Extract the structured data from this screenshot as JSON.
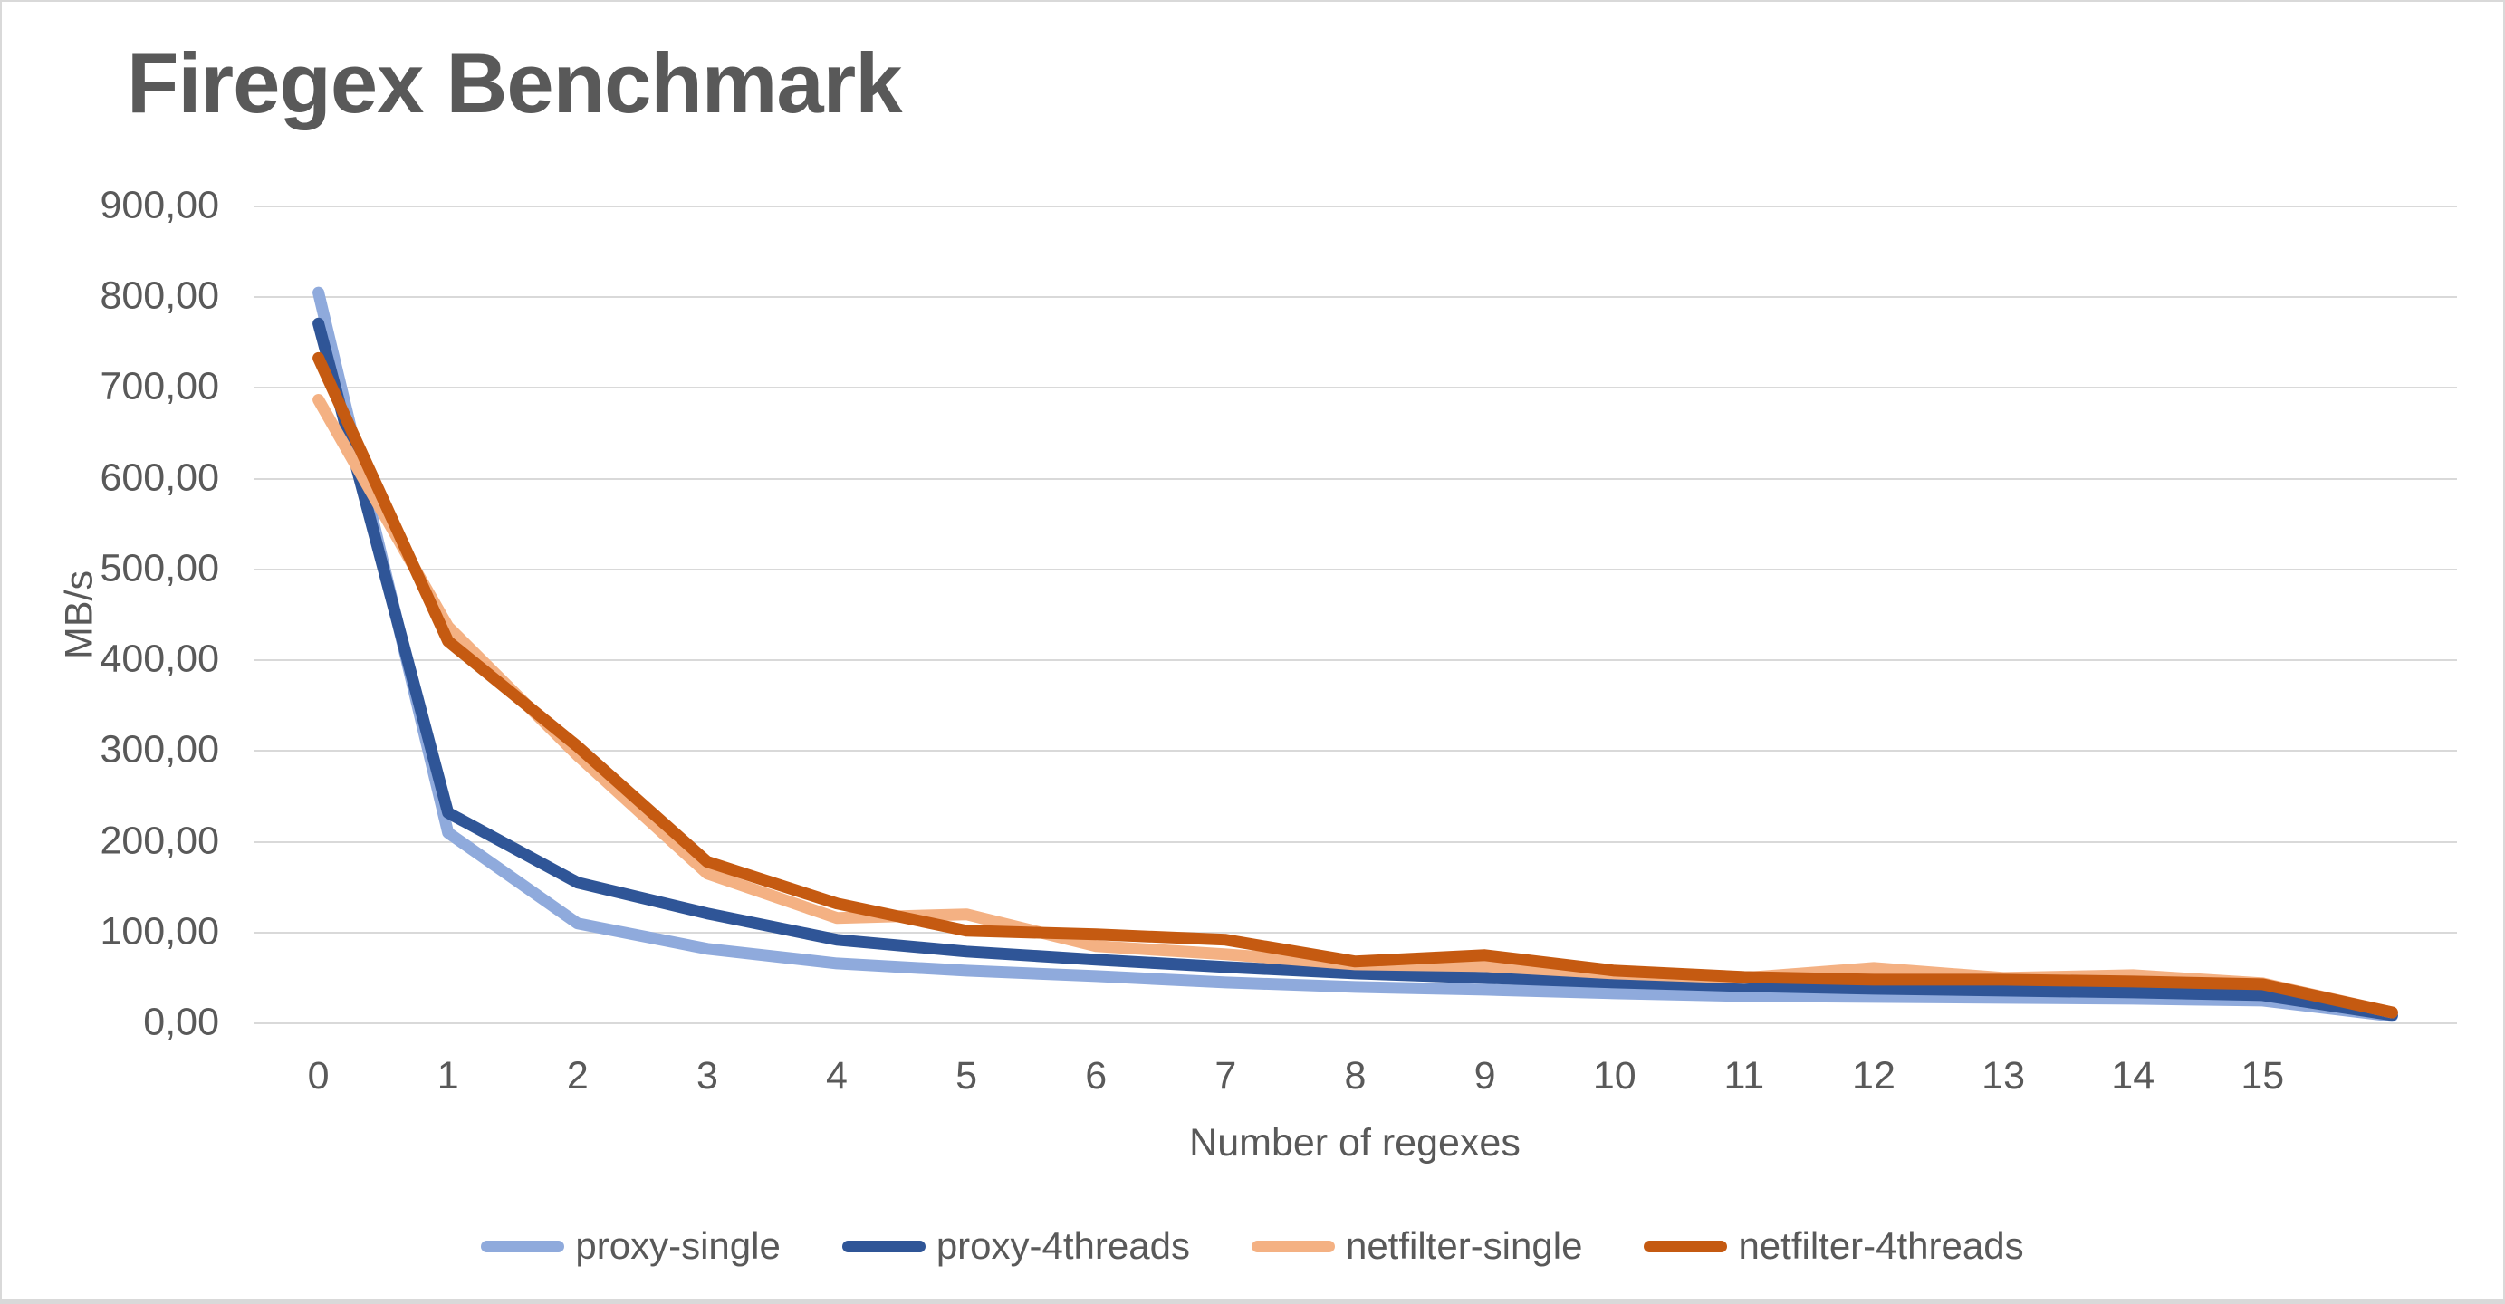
{
  "text_color": "#595959",
  "gridline_color": "#D9D9D9",
  "canvas_border_color": "#D9D9D9",
  "chart_data": {
    "type": "line",
    "title": "Firegex Benchmark",
    "xlabel": "Number of regexes",
    "ylabel": "MB/s",
    "categories": [
      "0",
      "1",
      "2",
      "3",
      "4",
      "5",
      "6",
      "7",
      "8",
      "9",
      "10",
      "11",
      "12",
      "13",
      "14",
      "15",
      ""
    ],
    "ylim": [
      0,
      900
    ],
    "grid": true,
    "legend_position": "bottom",
    "yticks": [
      {
        "value": 0,
        "label": "0,00"
      },
      {
        "value": 100,
        "label": "100,00"
      },
      {
        "value": 200,
        "label": "200,00"
      },
      {
        "value": 300,
        "label": "300,00"
      },
      {
        "value": 400,
        "label": "400,00"
      },
      {
        "value": 500,
        "label": "500,00"
      },
      {
        "value": 600,
        "label": "600,00"
      },
      {
        "value": 700,
        "label": "700,00"
      },
      {
        "value": 800,
        "label": "800,00"
      },
      {
        "value": 900,
        "label": "900,00"
      }
    ],
    "series": [
      {
        "name": "proxy-single",
        "color": "#8FAADC",
        "values": [
          805,
          210,
          110,
          82,
          66,
          58,
          52,
          45,
          40,
          37,
          33,
          30,
          29,
          28,
          27,
          25,
          8
        ]
      },
      {
        "name": "proxy-4threads",
        "color": "#2F5597",
        "values": [
          771,
          232,
          155,
          121,
          92,
          79,
          70,
          62,
          55,
          50,
          45,
          41,
          38,
          36,
          34,
          31,
          9
        ]
      },
      {
        "name": "netfilter-single",
        "color": "#F4B183",
        "values": [
          687,
          437,
          295,
          165,
          116,
          120,
          85,
          76,
          65,
          63,
          55,
          50,
          61,
          50,
          53,
          44,
          12
        ]
      },
      {
        "name": "netfilter-4threads",
        "color": "#C55A11",
        "values": [
          733,
          421,
          305,
          178,
          132,
          102,
          98,
          92,
          68,
          75,
          58,
          51,
          48,
          48,
          46,
          43,
          12
        ]
      }
    ]
  }
}
